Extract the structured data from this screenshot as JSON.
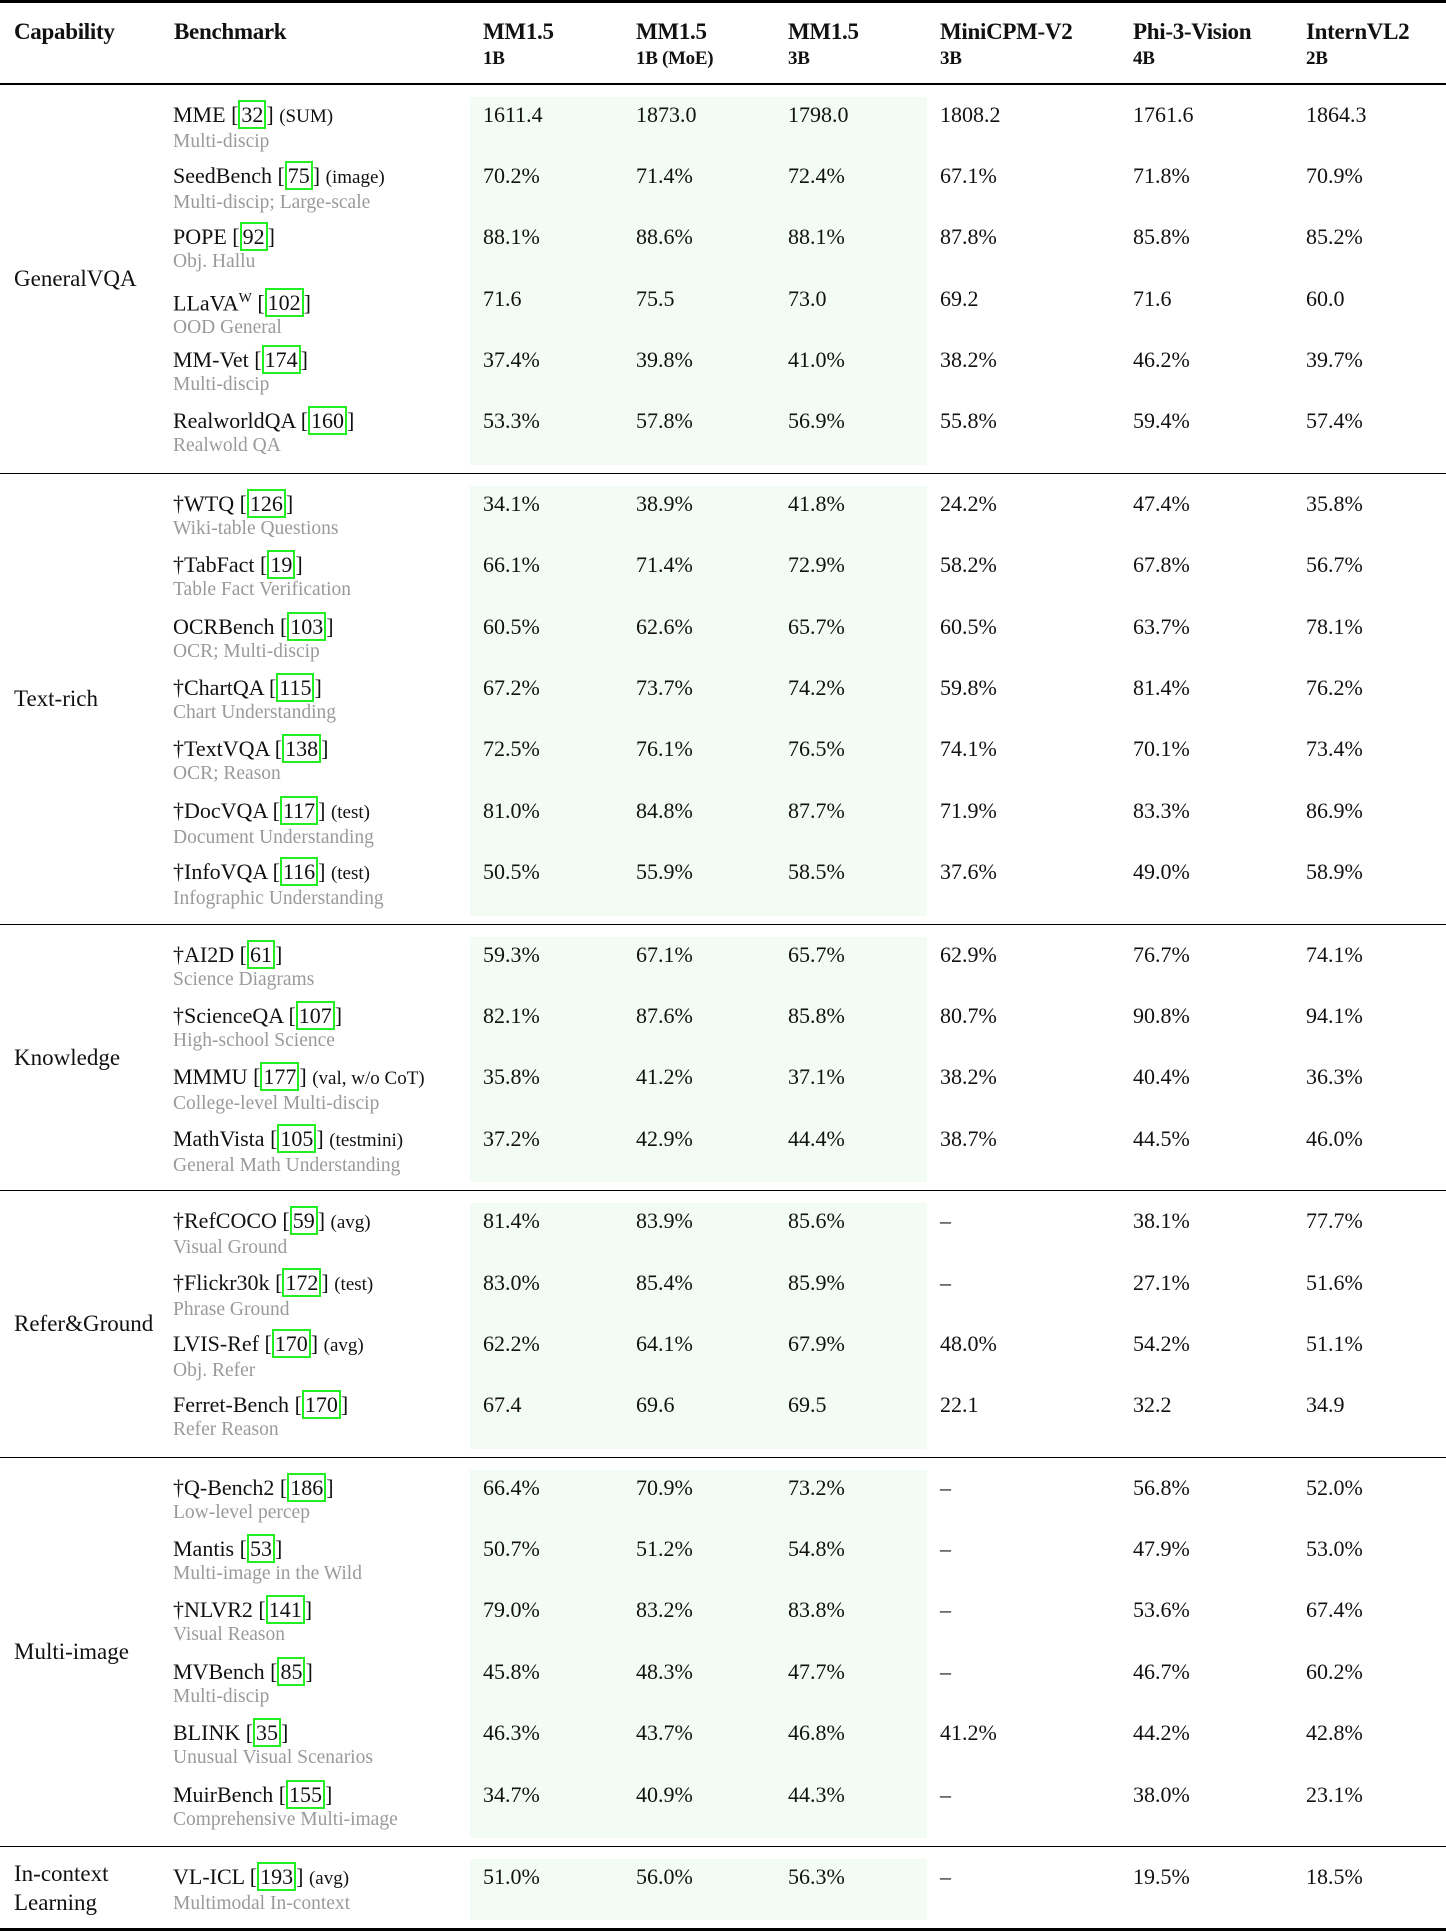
{
  "header": {
    "capability": "Capability",
    "benchmark": "Benchmark",
    "models": [
      {
        "name": "MM1.5",
        "size": "1B"
      },
      {
        "name": "MM1.5",
        "size": "1B (MoE)"
      },
      {
        "name": "MM1.5",
        "size": "3B"
      },
      {
        "name": "MiniCPM-V2",
        "size": "3B"
      },
      {
        "name": "Phi-3-Vision",
        "size": "4B"
      },
      {
        "name": "InternVL2",
        "size": "2B"
      }
    ]
  },
  "highlight_color": "#f2fbf4",
  "citation_box_color": "#22ee22",
  "sections": [
    {
      "capability": "GeneralVQA",
      "rows": [
        {
          "dagger": "",
          "name": "MME",
          "sup": "",
          "cite": "32",
          "suffix": "(SUM)",
          "desc": "Multi-discip",
          "values": [
            "1611.4",
            "1873.0",
            "1798.0",
            "1808.2",
            "1761.6",
            "1864.3"
          ]
        },
        {
          "dagger": "",
          "name": "SeedBench",
          "sup": "",
          "cite": "75",
          "suffix": "(image)",
          "desc": "Multi-discip; Large-scale",
          "values": [
            "70.2%",
            "71.4%",
            "72.4%",
            "67.1%",
            "71.8%",
            "70.9%"
          ]
        },
        {
          "dagger": "",
          "name": "POPE",
          "sup": "",
          "cite": "92",
          "suffix": "",
          "desc": "Obj. Hallu",
          "values": [
            "88.1%",
            "88.6%",
            "88.1%",
            "87.8%",
            "85.8%",
            "85.2%"
          ]
        },
        {
          "dagger": "",
          "name": "LLaVA",
          "sup": "W",
          "cite": "102",
          "suffix": "",
          "desc": "OOD General",
          "values": [
            "71.6",
            "75.5",
            "73.0",
            "69.2",
            "71.6",
            "60.0"
          ]
        },
        {
          "dagger": "",
          "name": "MM-Vet",
          "sup": "",
          "cite": "174",
          "suffix": "",
          "desc": "Multi-discip",
          "values": [
            "37.4%",
            "39.8%",
            "41.0%",
            "38.2%",
            "46.2%",
            "39.7%"
          ]
        },
        {
          "dagger": "",
          "name": "RealworldQA",
          "sup": "",
          "cite": "160",
          "suffix": "",
          "desc": "Realwold QA",
          "values": [
            "53.3%",
            "57.8%",
            "56.9%",
            "55.8%",
            "59.4%",
            "57.4%"
          ]
        }
      ]
    },
    {
      "capability": "Text-rich",
      "rows": [
        {
          "dagger": "†",
          "name": "WTQ",
          "sup": "",
          "cite": "126",
          "suffix": "",
          "desc": "Wiki-table Questions",
          "values": [
            "34.1%",
            "38.9%",
            "41.8%",
            "24.2%",
            "47.4%",
            "35.8%"
          ]
        },
        {
          "dagger": "†",
          "name": "TabFact",
          "sup": "",
          "cite": "19",
          "suffix": "",
          "desc": "Table Fact Verification",
          "values": [
            "66.1%",
            "71.4%",
            "72.9%",
            "58.2%",
            "67.8%",
            "56.7%"
          ]
        },
        {
          "dagger": "",
          "name": "OCRBench",
          "sup": "",
          "cite": "103",
          "suffix": "",
          "desc": "OCR; Multi-discip",
          "values": [
            "60.5%",
            "62.6%",
            "65.7%",
            "60.5%",
            "63.7%",
            "78.1%"
          ]
        },
        {
          "dagger": "†",
          "name": "ChartQA",
          "sup": "",
          "cite": "115",
          "suffix": "",
          "desc": "Chart Understanding",
          "values": [
            "67.2%",
            "73.7%",
            "74.2%",
            "59.8%",
            "81.4%",
            "76.2%"
          ]
        },
        {
          "dagger": "†",
          "name": "TextVQA",
          "sup": "",
          "cite": "138",
          "suffix": "",
          "desc": "OCR; Reason",
          "values": [
            "72.5%",
            "76.1%",
            "76.5%",
            "74.1%",
            "70.1%",
            "73.4%"
          ]
        },
        {
          "dagger": "†",
          "name": "DocVQA",
          "sup": "",
          "cite": "117",
          "suffix": "(test)",
          "desc": "Document Understanding",
          "values": [
            "81.0%",
            "84.8%",
            "87.7%",
            "71.9%",
            "83.3%",
            "86.9%"
          ]
        },
        {
          "dagger": "†",
          "name": "InfoVQA",
          "sup": "",
          "cite": "116",
          "suffix": "(test)",
          "desc": "Infographic Understanding",
          "values": [
            "50.5%",
            "55.9%",
            "58.5%",
            "37.6%",
            "49.0%",
            "58.9%"
          ]
        }
      ]
    },
    {
      "capability": "Knowledge",
      "rows": [
        {
          "dagger": "†",
          "name": "AI2D",
          "sup": "",
          "cite": "61",
          "suffix": "",
          "desc": "Science Diagrams",
          "values": [
            "59.3%",
            "67.1%",
            "65.7%",
            "62.9%",
            "76.7%",
            "74.1%"
          ]
        },
        {
          "dagger": "†",
          "name": "ScienceQA",
          "sup": "",
          "cite": "107",
          "suffix": "",
          "desc": "High-school Science",
          "values": [
            "82.1%",
            "87.6%",
            "85.8%",
            "80.7%",
            "90.8%",
            "94.1%"
          ]
        },
        {
          "dagger": "",
          "name": "MMMU",
          "sup": "",
          "cite": "177",
          "suffix": "(val, w/o CoT)",
          "desc": "College-level Multi-discip",
          "values": [
            "35.8%",
            "41.2%",
            "37.1%",
            "38.2%",
            "40.4%",
            "36.3%"
          ]
        },
        {
          "dagger": "",
          "name": "MathVista",
          "sup": "",
          "cite": "105",
          "suffix": "(testmini)",
          "desc": "General Math Understanding",
          "values": [
            "37.2%",
            "42.9%",
            "44.4%",
            "38.7%",
            "44.5%",
            "46.0%"
          ]
        }
      ]
    },
    {
      "capability": "Refer&Ground",
      "rows": [
        {
          "dagger": "†",
          "name": "RefCOCO",
          "sup": "",
          "cite": "59",
          "suffix": "(avg)",
          "desc": "Visual Ground",
          "values": [
            "81.4%",
            "83.9%",
            "85.6%",
            "–",
            "38.1%",
            "77.7%"
          ]
        },
        {
          "dagger": "†",
          "name": "Flickr30k",
          "sup": "",
          "cite": "172",
          "suffix": "(test)",
          "desc": "Phrase Ground",
          "values": [
            "83.0%",
            "85.4%",
            "85.9%",
            "–",
            "27.1%",
            "51.6%"
          ]
        },
        {
          "dagger": "",
          "name": "LVIS-Ref",
          "sup": "",
          "cite": "170",
          "suffix": "(avg)",
          "desc": "Obj. Refer",
          "values": [
            "62.2%",
            "64.1%",
            "67.9%",
            "48.0%",
            "54.2%",
            "51.1%"
          ]
        },
        {
          "dagger": "",
          "name": "Ferret-Bench",
          "sup": "",
          "cite": "170",
          "suffix": "",
          "desc": "Refer Reason",
          "values": [
            "67.4",
            "69.6",
            "69.5",
            "22.1",
            "32.2",
            "34.9"
          ]
        }
      ]
    },
    {
      "capability": "Multi-image",
      "rows": [
        {
          "dagger": "†",
          "name": "Q-Bench2",
          "sup": "",
          "cite": "186",
          "suffix": "",
          "desc": "Low-level percep",
          "values": [
            "66.4%",
            "70.9%",
            "73.2%",
            "–",
            "56.8%",
            "52.0%"
          ]
        },
        {
          "dagger": "",
          "name": "Mantis",
          "sup": "",
          "cite": "53",
          "suffix": "",
          "desc": "Multi-image in the Wild",
          "values": [
            "50.7%",
            "51.2%",
            "54.8%",
            "–",
            "47.9%",
            "53.0%"
          ]
        },
        {
          "dagger": "†",
          "name": "NLVR2",
          "sup": "",
          "cite": "141",
          "suffix": "",
          "desc": "Visual Reason",
          "values": [
            "79.0%",
            "83.2%",
            "83.8%",
            "–",
            "53.6%",
            "67.4%"
          ]
        },
        {
          "dagger": "",
          "name": "MVBench",
          "sup": "",
          "cite": "85",
          "suffix": "",
          "desc": "Multi-discip",
          "values": [
            "45.8%",
            "48.3%",
            "47.7%",
            "–",
            "46.7%",
            "60.2%"
          ]
        },
        {
          "dagger": "",
          "name": "BLINK",
          "sup": "",
          "cite": "35",
          "suffix": "",
          "desc": "Unusual Visual Scenarios",
          "values": [
            "46.3%",
            "43.7%",
            "46.8%",
            "41.2%",
            "44.2%",
            "42.8%"
          ]
        },
        {
          "dagger": "",
          "name": "MuirBench",
          "sup": "",
          "cite": "155",
          "suffix": "",
          "desc": "Comprehensive Multi-image",
          "values": [
            "34.7%",
            "40.9%",
            "44.3%",
            "–",
            "38.0%",
            "23.1%"
          ]
        }
      ]
    },
    {
      "capability": "In-context Learning",
      "rows": [
        {
          "dagger": "",
          "name": "VL-ICL",
          "sup": "",
          "cite": "193",
          "suffix": "(avg)",
          "desc": "Multimodal In-context",
          "values": [
            "51.0%",
            "56.0%",
            "56.3%",
            "–",
            "19.5%",
            "18.5%"
          ]
        }
      ]
    }
  ]
}
